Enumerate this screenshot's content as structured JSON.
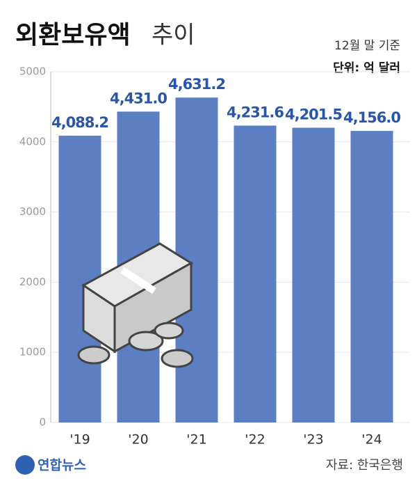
{
  "chart_data": {
    "type": "bar",
    "title_parts": [
      "외환보유액",
      "추이"
    ],
    "notes": [
      "12월 말 기준",
      "단위: 억 달러"
    ],
    "source": "자료: 한국은행",
    "logo": "연합뉴스",
    "categories": [
      "'19",
      "'20",
      "'21",
      "'22",
      "'23",
      "'24"
    ],
    "values": [
      4088.2,
      4431.0,
      4631.2,
      4231.6,
      4201.5,
      4156.0
    ],
    "value_labels": [
      "4,088.2",
      "4,431.0",
      "4,631.2",
      "4,231.6",
      "4,201.5",
      "4,156.0"
    ],
    "color": "#5b7fc2",
    "ylim": [
      0,
      5000
    ],
    "yticks": [
      0,
      1000,
      2000,
      3000,
      4000,
      5000
    ],
    "grid": true
  }
}
